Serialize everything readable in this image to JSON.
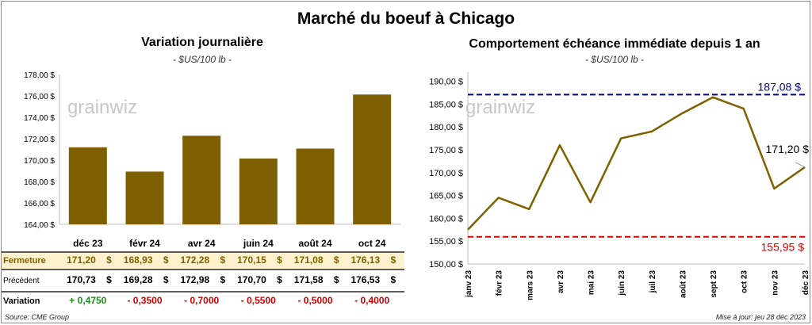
{
  "title": "Marché du boeuf à Chicago",
  "source": "Source: CME Group",
  "updated": "Mise à jour: jeu 28 déc 2023",
  "brand": "grainwiz",
  "colors": {
    "bar": "#7f6000",
    "line": "#7f6000",
    "max_line": "#00008b",
    "min_line": "#e00000",
    "fermeture_bg": "#fff2cc",
    "positive": "#1e8c1e",
    "negative": "#d00000"
  },
  "left": {
    "title": "Variation  journalière",
    "unit": "- $US/100 lb -",
    "row_labels": {
      "close": "Fermeture",
      "prev": "Précédent",
      "change": "Variation"
    },
    "table": [
      {
        "month": "déc 23",
        "close": "171,20",
        "prev": "170,73",
        "change": "+ 0,4750",
        "sign": "+"
      },
      {
        "month": "févr 24",
        "close": "168,93",
        "prev": "169,28",
        "change": "- 0,3500",
        "sign": "-"
      },
      {
        "month": "avr 24",
        "close": "172,28",
        "prev": "172,98",
        "change": "- 0,7000",
        "sign": "-"
      },
      {
        "month": "juin 24",
        "close": "170,15",
        "prev": "170,70",
        "change": "- 0,5500",
        "sign": "-"
      },
      {
        "month": "août 24",
        "close": "171,08",
        "prev": "171,58",
        "change": "- 0,5000",
        "sign": "-"
      },
      {
        "month": "oct 24",
        "close": "176,13",
        "prev": "176,53",
        "change": "- 0,4000",
        "sign": "-"
      }
    ]
  },
  "right": {
    "title": "Comportement  échéance immédiate depuis 1 an",
    "unit": "- $US/100 lb -"
  },
  "chart_data": [
    {
      "type": "bar",
      "title": "Variation  journalière",
      "categories": [
        "déc 23",
        "févr 24",
        "avr 24",
        "juin 24",
        "août 24",
        "oct 24"
      ],
      "values": [
        171.2,
        168.93,
        172.28,
        170.15,
        171.08,
        176.13
      ],
      "ylim": [
        164,
        178
      ],
      "yticks": [
        164,
        166,
        168,
        170,
        172,
        174,
        176,
        178
      ],
      "ytick_labels": [
        "164,00 $",
        "166,00 $",
        "168,00 $",
        "170,00 $",
        "172,00 $",
        "174,00 $",
        "176,00 $",
        "178,00 $"
      ],
      "grid": false
    },
    {
      "type": "line",
      "title": "Comportement  échéance immédiate depuis 1 an",
      "xtick_labels": [
        "janv 23",
        "févr 23",
        "mars 23",
        "avr 23",
        "mai 23",
        "juin 23",
        "juil 23",
        "août 23",
        "sept 23",
        "oct 23",
        "nov 23",
        "déc 23"
      ],
      "ylim": [
        150,
        192
      ],
      "yticks": [
        150,
        155,
        160,
        165,
        170,
        175,
        180,
        185,
        190
      ],
      "ytick_labels": [
        "150,00 $",
        "155,00 $",
        "160,00 $",
        "165,00 $",
        "170,00 $",
        "175,00 $",
        "180,00 $",
        "185,00 $",
        "190,00 $"
      ],
      "max": 187.08,
      "max_label": "187,08 $",
      "min": 155.95,
      "min_label": "155,95 $",
      "last": 171.2,
      "last_label": "171,20 $",
      "month_values": [
        157.5,
        164.5,
        162.0,
        176.0,
        163.5,
        177.5,
        179.0,
        183.0,
        186.5,
        184.0,
        166.5,
        171.2
      ],
      "grid": false
    }
  ]
}
